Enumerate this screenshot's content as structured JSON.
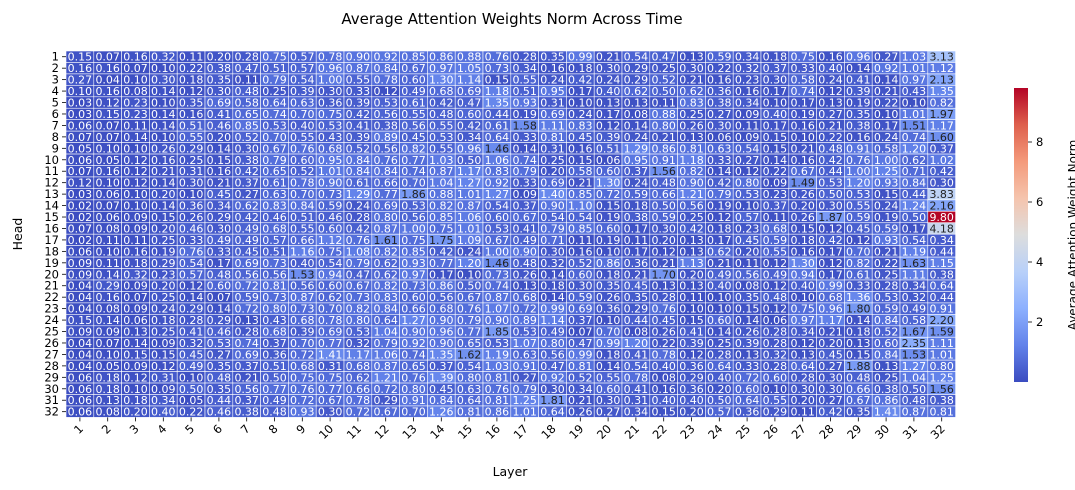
{
  "chart_data": {
    "type": "heatmap",
    "title": "Average Attention Weights Norm Across Time",
    "xlabel": "Layer",
    "ylabel": "Head",
    "x_categories": [
      "1",
      "2",
      "3",
      "4",
      "5",
      "6",
      "7",
      "8",
      "9",
      "10",
      "11",
      "12",
      "13",
      "14",
      "15",
      "16",
      "17",
      "18",
      "19",
      "20",
      "21",
      "22",
      "23",
      "24",
      "25",
      "26",
      "27",
      "28",
      "29",
      "30",
      "31",
      "32"
    ],
    "y_categories": [
      "1",
      "2",
      "3",
      "4",
      "5",
      "6",
      "7",
      "8",
      "9",
      "10",
      "11",
      "12",
      "13",
      "14",
      "15",
      "16",
      "17",
      "18",
      "19",
      "20",
      "21",
      "22",
      "23",
      "24",
      "25",
      "26",
      "27",
      "28",
      "29",
      "30",
      "31",
      "32"
    ],
    "colormap": "coolwarm",
    "value_range": [
      0.0,
      9.8
    ],
    "colorbar": {
      "label": "Average Attention Weight Norm",
      "ticks": [
        2,
        4,
        6,
        8
      ]
    },
    "values": [
      [
        0.15,
        0.07,
        0.16,
        0.32,
        0.11,
        0.2,
        0.28,
        0.75,
        0.57,
        0.78,
        0.9,
        0.92,
        0.85,
        0.86,
        0.88,
        0.76,
        0.28,
        0.35,
        0.99,
        0.21,
        0.54,
        0.47,
        0.13,
        0.59,
        0.34,
        0.18,
        0.75,
        0.16,
        0.96,
        0.27,
        1.03,
        3.13
      ],
      [
        0.16,
        0.16,
        0.07,
        0.1,
        0.22,
        0.38,
        0.47,
        0.51,
        0.57,
        0.96,
        0.87,
        0.84,
        0.67,
        0.97,
        1.05,
        0.73,
        0.34,
        0.16,
        0.18,
        0.3,
        0.29,
        0.25,
        0.3,
        0.22,
        0.32,
        0.37,
        0.33,
        0.4,
        0.14,
        0.92,
        1.01,
        1.12
      ],
      [
        0.27,
        0.04,
        0.1,
        0.3,
        0.18,
        0.35,
        0.11,
        0.79,
        0.54,
        1.0,
        0.55,
        0.78,
        0.6,
        1.3,
        1.14,
        0.15,
        0.55,
        0.24,
        0.42,
        0.24,
        0.29,
        0.52,
        0.21,
        0.16,
        0.23,
        0.3,
        0.58,
        0.24,
        0.41,
        0.14,
        0.97,
        2.13
      ],
      [
        0.1,
        0.16,
        0.08,
        0.14,
        0.12,
        0.3,
        0.48,
        0.25,
        0.39,
        0.3,
        0.33,
        0.12,
        0.49,
        0.68,
        0.69,
        1.18,
        0.51,
        0.95,
        0.17,
        0.4,
        0.62,
        0.5,
        0.62,
        0.36,
        0.16,
        0.17,
        0.74,
        0.12,
        0.39,
        0.21,
        0.43,
        1.35
      ],
      [
        0.03,
        0.12,
        0.23,
        0.1,
        0.35,
        0.69,
        0.58,
        0.64,
        0.63,
        0.36,
        0.39,
        0.53,
        0.61,
        0.42,
        0.47,
        1.35,
        0.93,
        0.31,
        0.1,
        0.13,
        0.13,
        0.11,
        0.83,
        0.38,
        0.34,
        0.1,
        0.17,
        0.13,
        0.19,
        0.22,
        0.1,
        0.82
      ],
      [
        0.03,
        0.15,
        0.23,
        0.14,
        0.16,
        0.41,
        0.65,
        0.74,
        0.7,
        0.75,
        0.42,
        0.56,
        0.55,
        0.48,
        0.6,
        0.44,
        0.19,
        0.69,
        0.24,
        0.17,
        0.08,
        0.88,
        0.25,
        0.27,
        0.09,
        0.4,
        0.19,
        0.27,
        0.35,
        0.1,
        1.01,
        1.97
      ],
      [
        0.06,
        0.07,
        0.11,
        0.14,
        0.51,
        0.46,
        0.85,
        0.53,
        0.4,
        0.53,
        0.41,
        0.38,
        0.56,
        0.55,
        0.42,
        0.61,
        1.58,
        1.11,
        0.83,
        0.12,
        0.14,
        0.8,
        0.26,
        0.3,
        0.11,
        0.17,
        0.16,
        0.21,
        0.38,
        0.17,
        1.51,
        1.17
      ],
      [
        0.07,
        0.07,
        0.14,
        0.1,
        0.55,
        0.2,
        0.52,
        0.7,
        0.55,
        0.43,
        0.39,
        0.89,
        0.45,
        0.53,
        0.34,
        0.64,
        0.33,
        0.81,
        0.45,
        0.39,
        0.24,
        0.21,
        0.13,
        0.06,
        0.09,
        0.15,
        0.1,
        0.22,
        0.16,
        0.24,
        0.74,
        1.6
      ],
      [
        0.05,
        0.1,
        0.1,
        0.26,
        0.29,
        0.14,
        0.3,
        0.67,
        0.76,
        0.68,
        0.52,
        0.56,
        0.82,
        0.55,
        0.96,
        1.46,
        0.14,
        0.31,
        0.16,
        0.51,
        1.29,
        0.86,
        0.81,
        0.63,
        0.54,
        0.15,
        0.21,
        0.48,
        0.91,
        0.58,
        1.2,
        0.37
      ],
      [
        0.06,
        0.05,
        0.12,
        0.16,
        0.25,
        0.15,
        0.38,
        0.79,
        0.6,
        0.95,
        0.84,
        0.76,
        0.77,
        1.03,
        0.5,
        1.06,
        0.74,
        0.25,
        0.15,
        0.06,
        0.95,
        0.91,
        1.18,
        0.33,
        0.27,
        0.14,
        0.16,
        0.42,
        0.76,
        1.0,
        0.62,
        1.02
      ],
      [
        0.07,
        0.16,
        0.12,
        0.21,
        0.31,
        0.16,
        0.42,
        0.65,
        0.52,
        1.01,
        0.84,
        0.84,
        0.74,
        0.87,
        1.17,
        0.83,
        0.79,
        0.2,
        0.58,
        0.6,
        0.37,
        1.56,
        0.82,
        0.14,
        0.12,
        0.22,
        0.67,
        0.44,
        1.0,
        1.25,
        0.71,
        0.42
      ],
      [
        0.12,
        0.1,
        0.12,
        0.14,
        0.3,
        0.21,
        0.37,
        0.61,
        0.78,
        0.9,
        0.61,
        0.66,
        0.7,
        1.04,
        1.27,
        0.92,
        0.33,
        0.69,
        0.21,
        1.3,
        0.24,
        0.48,
        0.9,
        0.42,
        0.8,
        0.09,
        1.49,
        0.53,
        1.2,
        0.93,
        0.84,
        0.3
      ],
      [
        0.03,
        0.06,
        0.1,
        0.2,
        0.1,
        0.45,
        0.27,
        0.63,
        0.7,
        0.73,
        1.29,
        0.77,
        1.86,
        0.88,
        1.01,
        1.27,
        0.09,
        1.4,
        0.85,
        0.72,
        0.59,
        0.66,
        1.21,
        0.79,
        0.53,
        0.23,
        0.26,
        0.5,
        0.53,
        0.15,
        0.44,
        3.83
      ],
      [
        0.02,
        0.07,
        0.1,
        0.14,
        0.36,
        0.34,
        0.62,
        0.83,
        0.84,
        0.59,
        0.24,
        0.69,
        0.53,
        0.82,
        0.87,
        0.54,
        0.37,
        0.9,
        1.1,
        0.15,
        0.18,
        0.5,
        0.56,
        0.19,
        0.1,
        0.37,
        0.2,
        0.3,
        0.55,
        0.24,
        1.24,
        2.16
      ],
      [
        0.02,
        0.06,
        0.09,
        0.15,
        0.26,
        0.29,
        0.42,
        0.46,
        0.51,
        0.46,
        0.28,
        0.8,
        0.56,
        0.85,
        1.06,
        0.6,
        0.67,
        0.54,
        0.54,
        0.19,
        0.38,
        0.59,
        0.25,
        0.12,
        0.57,
        0.11,
        0.26,
        1.87,
        0.59,
        0.19,
        0.5,
        9.8
      ],
      [
        0.07,
        0.08,
        0.09,
        0.2,
        0.46,
        0.3,
        0.49,
        0.68,
        0.55,
        0.6,
        0.42,
        0.87,
        1.0,
        0.75,
        1.01,
        0.53,
        0.41,
        0.79,
        0.85,
        0.6,
        0.17,
        0.3,
        0.42,
        0.18,
        0.23,
        0.68,
        0.15,
        0.12,
        0.45,
        0.59,
        0.17,
        4.18
      ],
      [
        0.02,
        0.11,
        0.11,
        0.25,
        0.33,
        0.49,
        0.49,
        0.57,
        0.66,
        1.12,
        0.76,
        1.61,
        0.75,
        1.75,
        1.09,
        0.67,
        0.49,
        0.71,
        0.11,
        0.19,
        0.11,
        0.2,
        0.13,
        0.17,
        0.45,
        0.59,
        0.18,
        0.42,
        0.12,
        0.93,
        0.54,
        0.34
      ],
      [
        0.06,
        0.1,
        0.16,
        0.19,
        0.76,
        0.33,
        0.45,
        0.51,
        1.16,
        0.75,
        1.08,
        0.82,
        0.85,
        0.42,
        0.24,
        1.0,
        0.9,
        0.3,
        0.16,
        0.1,
        0.17,
        0.12,
        0.13,
        0.62,
        0.2,
        0.55,
        0.16,
        0.17,
        0.7,
        0.21,
        1.19,
        0.44
      ],
      [
        0.09,
        0.11,
        0.18,
        0.29,
        0.54,
        0.17,
        0.69,
        0.73,
        0.4,
        0.54,
        0.79,
        0.62,
        0.93,
        0.77,
        1.2,
        1.46,
        0.48,
        0.32,
        0.52,
        0.86,
        0.36,
        0.21,
        1.13,
        0.21,
        0.11,
        0.12,
        1.3,
        0.12,
        0.82,
        0.22,
        1.63,
        1.15
      ],
      [
        0.09,
        0.14,
        0.32,
        0.23,
        0.57,
        0.48,
        0.56,
        0.56,
        1.53,
        0.94,
        0.47,
        0.62,
        0.97,
        0.17,
        0.1,
        0.73,
        0.26,
        0.14,
        0.6,
        0.18,
        0.21,
        1.7,
        0.2,
        0.49,
        0.56,
        0.49,
        0.94,
        0.17,
        0.61,
        0.25,
        1.11,
        0.38
      ],
      [
        0.04,
        0.29,
        0.09,
        0.2,
        0.12,
        0.6,
        0.72,
        0.81,
        0.56,
        0.6,
        0.67,
        0.82,
        0.73,
        0.86,
        0.5,
        0.74,
        0.13,
        0.18,
        0.3,
        0.35,
        0.45,
        0.13,
        0.13,
        0.4,
        0.08,
        0.12,
        0.4,
        0.99,
        0.33,
        0.28,
        0.34,
        0.64
      ],
      [
        0.04,
        0.16,
        0.07,
        0.25,
        0.14,
        0.07,
        0.59,
        0.73,
        0.87,
        0.62,
        0.73,
        0.83,
        0.6,
        0.56,
        0.67,
        0.87,
        0.68,
        0.14,
        0.59,
        0.26,
        0.35,
        0.28,
        0.11,
        0.1,
        0.35,
        0.48,
        0.1,
        0.68,
        1.36,
        0.53,
        0.32,
        0.44
      ],
      [
        0.04,
        0.08,
        0.09,
        0.24,
        0.29,
        0.14,
        0.72,
        0.8,
        0.73,
        0.7,
        0.82,
        0.84,
        0.66,
        0.68,
        0.76,
        1.07,
        0.72,
        0.99,
        0.69,
        0.36,
        0.29,
        0.76,
        0.1,
        0.1,
        0.15,
        0.12,
        0.75,
        0.96,
        1.8,
        0.59,
        0.49,
        0.91
      ],
      [
        0.15,
        0.14,
        0.06,
        0.18,
        0.28,
        0.29,
        0.13,
        0.43,
        0.68,
        0.78,
        0.8,
        0.64,
        1.27,
        0.9,
        0.79,
        0.9,
        0.89,
        1.14,
        0.37,
        0.1,
        0.44,
        0.45,
        0.15,
        0.6,
        0.14,
        0.06,
        0.97,
        1.17,
        0.14,
        0.84,
        0.58,
        2.2
      ],
      [
        0.09,
        0.09,
        0.13,
        0.25,
        0.41,
        0.46,
        0.28,
        0.68,
        0.39,
        0.69,
        0.53,
        1.04,
        0.9,
        0.96,
        0.77,
        1.85,
        0.53,
        0.49,
        0.07,
        0.7,
        0.08,
        0.26,
        0.41,
        0.14,
        0.26,
        0.28,
        0.34,
        0.21,
        0.18,
        0.52,
        1.67,
        1.59
      ],
      [
        0.04,
        0.07,
        0.14,
        0.09,
        0.32,
        0.53,
        0.74,
        0.37,
        0.7,
        0.77,
        0.32,
        0.79,
        0.92,
        0.9,
        0.65,
        0.53,
        1.07,
        0.8,
        0.47,
        0.99,
        1.2,
        0.22,
        0.39,
        0.25,
        0.39,
        0.28,
        0.12,
        0.2,
        0.13,
        0.6,
        2.35,
        1.11
      ],
      [
        0.04,
        0.1,
        0.15,
        0.15,
        0.45,
        0.27,
        0.69,
        0.36,
        0.72,
        1.41,
        1.17,
        1.06,
        0.74,
        1.35,
        1.62,
        1.19,
        0.63,
        0.56,
        0.99,
        0.18,
        0.41,
        0.78,
        0.12,
        0.28,
        0.13,
        0.32,
        0.13,
        0.45,
        0.15,
        0.84,
        1.53,
        1.01
      ],
      [
        0.04,
        0.05,
        0.09,
        0.12,
        0.49,
        0.35,
        0.37,
        0.51,
        0.68,
        0.31,
        0.68,
        0.87,
        0.65,
        0.37,
        0.54,
        1.03,
        0.91,
        0.47,
        0.81,
        0.14,
        0.54,
        0.4,
        0.36,
        0.64,
        0.33,
        0.28,
        0.64,
        0.27,
        1.88,
        0.13,
        1.27,
        0.8
      ],
      [
        0.06,
        0.18,
        0.12,
        0.31,
        0.1,
        0.48,
        0.21,
        0.5,
        0.75,
        0.75,
        0.62,
        1.21,
        0.76,
        1.39,
        0.8,
        0.81,
        0.27,
        0.92,
        0.52,
        0.55,
        0.78,
        0.08,
        0.29,
        0.4,
        0.72,
        0.6,
        0.28,
        0.3,
        0.48,
        0.25,
        1.04,
        1.25
      ],
      [
        0.06,
        0.18,
        0.1,
        0.09,
        0.5,
        0.35,
        0.56,
        0.77,
        0.76,
        0.77,
        0.66,
        0.72,
        0.8,
        0.45,
        0.63,
        0.76,
        0.79,
        0.3,
        0.34,
        0.6,
        0.41,
        0.16,
        0.36,
        0.2,
        0.6,
        0.1,
        0.3,
        0.3,
        0.66,
        0.38,
        0.5,
        1.56
      ],
      [
        0.06,
        0.13,
        0.18,
        0.34,
        0.05,
        0.44,
        0.37,
        0.49,
        0.72,
        0.67,
        0.78,
        0.29,
        0.91,
        0.84,
        0.64,
        0.81,
        1.25,
        1.81,
        0.21,
        0.3,
        0.31,
        0.4,
        0.4,
        0.5,
        0.64,
        0.55,
        0.2,
        0.27,
        0.67,
        0.86,
        0.48,
        0.38
      ],
      [
        0.06,
        0.08,
        0.2,
        0.4,
        0.22,
        0.46,
        0.38,
        0.48,
        0.93,
        0.3,
        0.72,
        0.67,
        0.7,
        1.26,
        0.81,
        0.86,
        1.01,
        0.64,
        0.26,
        0.27,
        0.34,
        0.15,
        0.2,
        0.57,
        0.36,
        0.29,
        0.11,
        0.42,
        0.35,
        1.41,
        0.87,
        0.81
      ]
    ]
  }
}
